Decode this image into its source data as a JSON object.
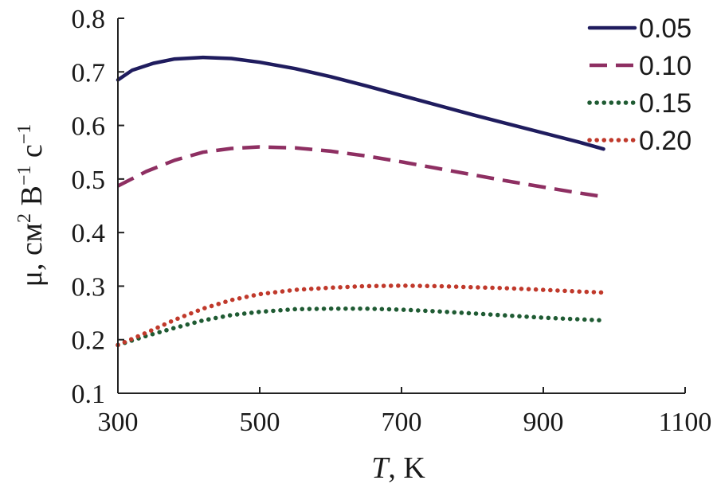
{
  "chart_data": {
    "type": "line",
    "title": "",
    "xlabel_var": "T",
    "xlabel_unit": ", K",
    "ylabel_parts": {
      "prefix": "μ, см",
      "sup1": "2",
      "mid": " В",
      "sup2": "−1",
      "mid2": " с",
      "sup3": "−1"
    },
    "xlim": [
      300,
      1100
    ],
    "ylim": [
      0.1,
      0.8
    ],
    "xticks": [
      "300",
      "500",
      "700",
      "900",
      "1100"
    ],
    "yticks": [
      "0.1",
      "0.2",
      "0.3",
      "0.4",
      "0.5",
      "0.6",
      "0.7",
      "0.8"
    ],
    "legend_position": "top-right",
    "series": [
      {
        "name": "0.05",
        "color": "#1f1c5e",
        "dash": "solid",
        "x": [
          300,
          320,
          350,
          380,
          420,
          460,
          500,
          550,
          600,
          650,
          700,
          750,
          800,
          850,
          900,
          950,
          985
        ],
        "values": [
          0.685,
          0.703,
          0.716,
          0.724,
          0.727,
          0.725,
          0.718,
          0.706,
          0.691,
          0.674,
          0.656,
          0.638,
          0.62,
          0.603,
          0.586,
          0.569,
          0.556
        ]
      },
      {
        "name": "0.10",
        "color": "#8e2f62",
        "dash": "dashed",
        "x": [
          300,
          340,
          380,
          420,
          460,
          500,
          550,
          600,
          650,
          700,
          750,
          800,
          850,
          900,
          950,
          985
        ],
        "values": [
          0.487,
          0.514,
          0.535,
          0.55,
          0.557,
          0.56,
          0.558,
          0.552,
          0.543,
          0.532,
          0.52,
          0.508,
          0.496,
          0.485,
          0.474,
          0.467
        ]
      },
      {
        "name": "0.15",
        "color": "#1f5b33",
        "dash": "dotted",
        "x": [
          300,
          340,
          380,
          420,
          460,
          500,
          550,
          600,
          650,
          700,
          750,
          800,
          850,
          900,
          950,
          985
        ],
        "values": [
          0.19,
          0.207,
          0.222,
          0.236,
          0.246,
          0.252,
          0.257,
          0.258,
          0.258,
          0.256,
          0.253,
          0.249,
          0.245,
          0.241,
          0.238,
          0.236
        ]
      },
      {
        "name": "0.20",
        "color": "#c0392b",
        "dash": "dotted",
        "x": [
          300,
          340,
          380,
          420,
          460,
          500,
          550,
          600,
          650,
          700,
          750,
          800,
          850,
          900,
          950,
          985
        ],
        "values": [
          0.19,
          0.213,
          0.237,
          0.258,
          0.274,
          0.285,
          0.293,
          0.297,
          0.3,
          0.301,
          0.3,
          0.298,
          0.296,
          0.293,
          0.29,
          0.288
        ]
      }
    ]
  }
}
